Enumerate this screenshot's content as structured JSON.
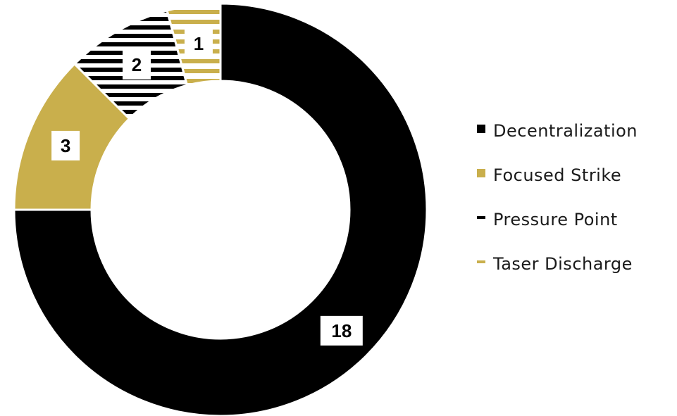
{
  "chart_data": {
    "type": "pie",
    "donut": true,
    "title": "",
    "categories": [
      "Decentralization",
      "Focused Strike",
      "Pressure Point",
      "Taser Discharge"
    ],
    "values": [
      18,
      3,
      2,
      1
    ],
    "data_labels": [
      "18",
      "3",
      "2",
      "1"
    ],
    "legend": {
      "placement": "right",
      "entries": [
        {
          "label": "Decentralization",
          "color": "#000000",
          "pattern": "solid"
        },
        {
          "label": "Focused Strike",
          "color": "#C9AF4C",
          "pattern": "solid"
        },
        {
          "label": "Pressure Point",
          "color": "#000000",
          "pattern": "horizontal-stripes"
        },
        {
          "label": "Taser Discharge",
          "color": "#C9AF4C",
          "pattern": "horizontal-stripes"
        }
      ]
    }
  }
}
